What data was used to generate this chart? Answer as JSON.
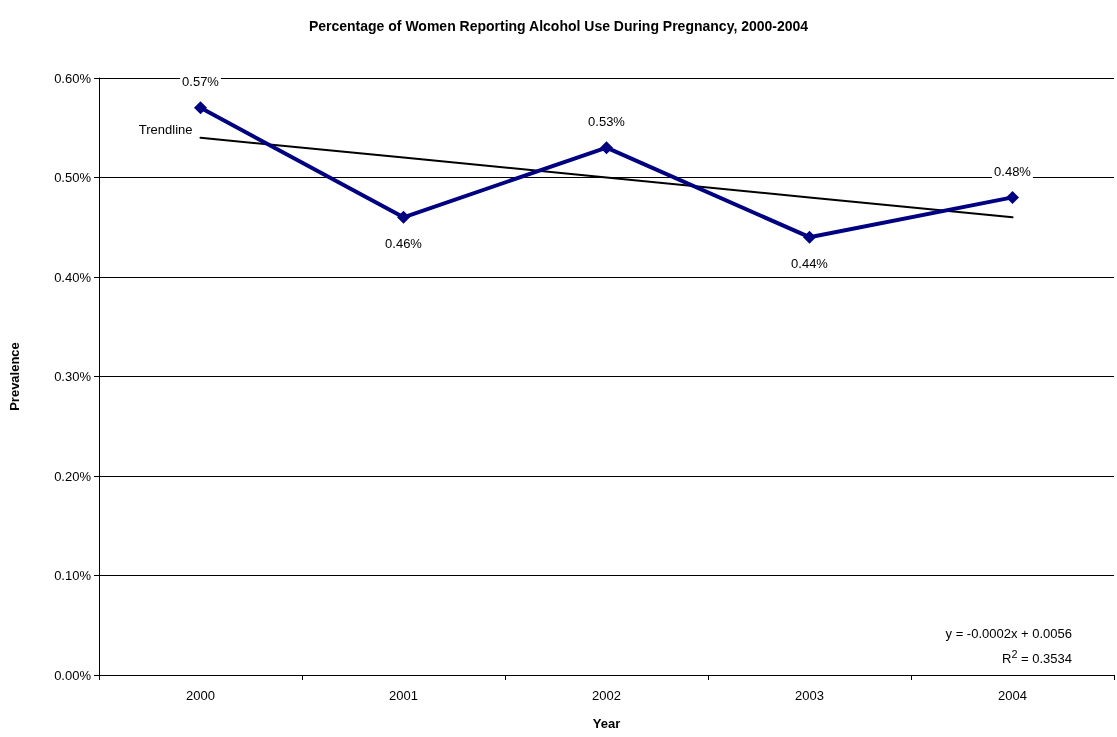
{
  "chart_data": {
    "type": "line",
    "title": "Percentage of Women Reporting Alcohol Use During Pregnancy, 2000-2004",
    "xlabel": "Year",
    "ylabel": "Prevalence",
    "categories": [
      "2000",
      "2001",
      "2002",
      "2003",
      "2004"
    ],
    "series": [
      {
        "color": "#000080",
        "values": [
          0.57,
          0.46,
          0.53,
          0.44,
          0.48
        ],
        "value_labels": [
          "0.57%",
          "0.46%",
          "0.53%",
          "0.44%",
          "0.48%"
        ],
        "marker": "diamond"
      },
      {
        "name": "Trendline",
        "color": "#000000",
        "values": [
          0.54,
          0.52,
          0.5,
          0.48,
          0.46
        ],
        "marker": "none"
      }
    ],
    "ylim": [
      0,
      0.6
    ],
    "yticks": [
      {
        "value": 0,
        "label": "0.00%"
      },
      {
        "value": 0.1,
        "label": "0.10%"
      },
      {
        "value": 0.2,
        "label": "0.20%"
      },
      {
        "value": 0.3,
        "label": "0.30%"
      },
      {
        "value": 0.4,
        "label": "0.40%"
      },
      {
        "value": 0.5,
        "label": "0.50%"
      },
      {
        "value": 0.6,
        "label": "0.60%"
      }
    ],
    "grid": "y",
    "annotations": [
      "y = -0.0002x + 0.0056",
      "R$^{2}$ = 0.3534"
    ]
  }
}
